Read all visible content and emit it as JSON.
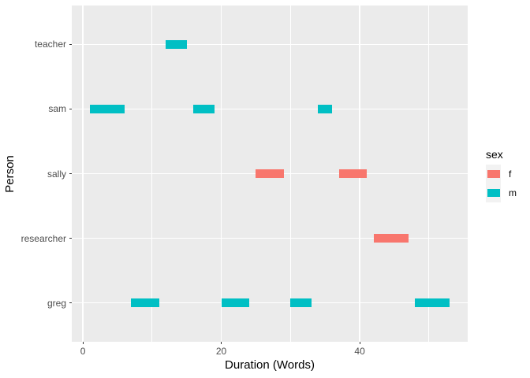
{
  "chart_data": {
    "type": "bar",
    "subtype": "gantt-segments",
    "title": "",
    "xlabel": "Duration (Words)",
    "ylabel": "Person",
    "x_ticks": [
      0,
      20,
      40
    ],
    "x_minor_ticks": [
      10,
      30,
      50
    ],
    "xlim": [
      -1.6,
      55.6
    ],
    "ylim_positions": [
      0.4,
      5.6
    ],
    "categories": [
      "greg",
      "researcher",
      "sally",
      "sam",
      "teacher"
    ],
    "grid": true,
    "panel_background": "#EBEBEB",
    "grid_color": "#FFFFFF",
    "tick_color": "#333333",
    "tick_label_color": "#4D4D4D",
    "colors": {
      "f": "#F8766D",
      "m": "#00BFC4"
    },
    "legend": {
      "title": "sex",
      "position": "right",
      "entries": [
        {
          "label": "f",
          "color": "#F8766D"
        },
        {
          "label": "m",
          "color": "#00BFC4"
        }
      ]
    },
    "segments": [
      {
        "person": "teacher",
        "start": 12,
        "end": 15,
        "sex": "m"
      },
      {
        "person": "sam",
        "start": 1,
        "end": 6,
        "sex": "m"
      },
      {
        "person": "sam",
        "start": 16,
        "end": 19,
        "sex": "m"
      },
      {
        "person": "sam",
        "start": 34,
        "end": 36,
        "sex": "m"
      },
      {
        "person": "sally",
        "start": 25,
        "end": 29,
        "sex": "f"
      },
      {
        "person": "sally",
        "start": 37,
        "end": 41,
        "sex": "f"
      },
      {
        "person": "researcher",
        "start": 42,
        "end": 47,
        "sex": "f"
      },
      {
        "person": "greg",
        "start": 7,
        "end": 11,
        "sex": "m"
      },
      {
        "person": "greg",
        "start": 20,
        "end": 24,
        "sex": "m"
      },
      {
        "person": "greg",
        "start": 30,
        "end": 33,
        "sex": "m"
      },
      {
        "person": "greg",
        "start": 48,
        "end": 53,
        "sex": "m"
      }
    ]
  }
}
